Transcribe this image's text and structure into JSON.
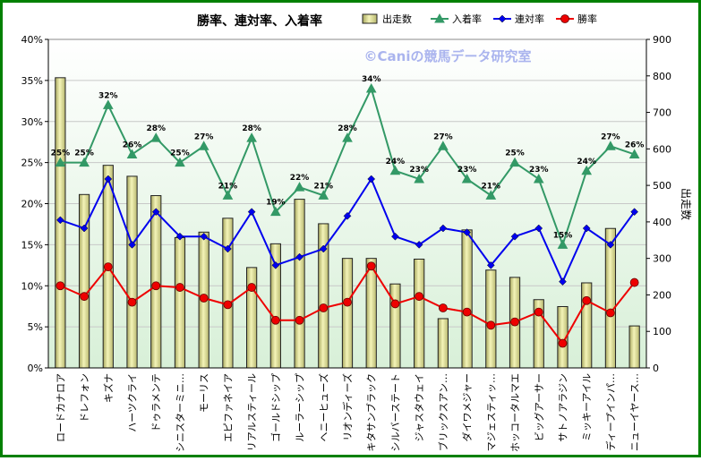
{
  "chart_data": {
    "type": "bar+line",
    "title": "勝率、連対率、入着率",
    "watermark": "©Caniの競馬データ研究室",
    "categories": [
      "ロードカナロア",
      "ドレフォン",
      "キズナ",
      "ハーツクライ",
      "ドゥラメンテ",
      "シニスターミニ…",
      "モーリス",
      "エピファネイア",
      "リアルスティール",
      "ゴールドシップ",
      "ルーラーシップ",
      "ヘニーヒューズ",
      "リオンディーズ",
      "キタサンブラック",
      "シルバーステート",
      "ジャスタウェイ",
      "ブリックスアン…",
      "ダイワメジャー",
      "マジェスティッ…",
      "ホッコータルマエ",
      "ビッグアーサー",
      "サトノアラジン",
      "ミッキーアイル",
      "ディープインパ…",
      "ニューイヤース…"
    ],
    "series": [
      {
        "name": "出走数",
        "type": "bar",
        "axis": "right",
        "color": "#e6e69c",
        "values": [
          795,
          475,
          555,
          525,
          472,
          357,
          372,
          410,
          275,
          340,
          462,
          395,
          300,
          300,
          230,
          298,
          135,
          378,
          268,
          248,
          187,
          168,
          233,
          382,
          115
        ]
      },
      {
        "name": "入着率",
        "type": "line",
        "axis": "left",
        "color": "#339966",
        "marker": "triangle",
        "values": [
          25,
          25,
          32,
          26,
          28,
          25,
          27,
          21,
          28,
          19,
          22,
          21,
          28,
          34,
          24,
          23,
          27,
          23,
          21,
          25,
          23,
          15,
          24,
          27,
          26
        ]
      },
      {
        "name": "連対率",
        "type": "line",
        "axis": "left",
        "color": "#0000ee",
        "marker": "diamond",
        "values": [
          18,
          17,
          23,
          15,
          19,
          16,
          16,
          14.5,
          19,
          12.5,
          13.5,
          14.5,
          18.5,
          23,
          16,
          15,
          17,
          16.5,
          12.5,
          16,
          17,
          10.5,
          17,
          15,
          19
        ]
      },
      {
        "name": "勝率",
        "type": "line",
        "axis": "left",
        "color": "#ee0000",
        "marker": "circle",
        "values": [
          10,
          8.7,
          12.3,
          8,
          10,
          9.8,
          8.5,
          7.7,
          9.8,
          5.8,
          5.8,
          7.3,
          8,
          12.4,
          7.8,
          8.7,
          7.3,
          6.8,
          5.2,
          5.6,
          6.8,
          3,
          8.2,
          6.7,
          10.4
        ]
      }
    ],
    "label_series": "入着率",
    "y_left": {
      "min": 0,
      "max": 40,
      "step": 5,
      "tick_labels": [
        "0%",
        "5%",
        "10%",
        "15%",
        "20%",
        "25%",
        "30%",
        "35%",
        "40%"
      ]
    },
    "y_right": {
      "min": 0,
      "max": 900,
      "step": 100,
      "label": "出走数",
      "tick_labels": [
        "0",
        "100",
        "200",
        "300",
        "400",
        "500",
        "600",
        "700",
        "800",
        "900"
      ]
    },
    "legend": {
      "position": "top-right",
      "order": [
        "出走数",
        "入着率",
        "連対率",
        "勝率"
      ]
    },
    "grid": true,
    "colors": {
      "frame": "#008000",
      "plot_top": "#ffffff",
      "plot_bottom": "#d8f0d8",
      "bar_edge": "#222222",
      "grid": "#c8c8c8"
    }
  }
}
